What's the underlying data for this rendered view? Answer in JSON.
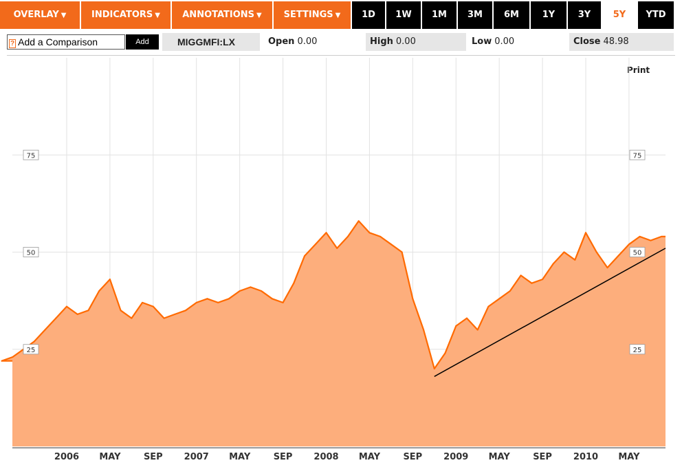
{
  "toolbar": {
    "menus": [
      {
        "label": "OVERLAY"
      },
      {
        "label": "INDICATORS"
      },
      {
        "label": "ANNOTATIONS"
      },
      {
        "label": "SETTINGS"
      }
    ],
    "ranges": [
      {
        "label": "1D"
      },
      {
        "label": "1W"
      },
      {
        "label": "1M"
      },
      {
        "label": "3M"
      },
      {
        "label": "6M"
      },
      {
        "label": "1Y"
      },
      {
        "label": "3Y"
      },
      {
        "label": "5Y",
        "active": true
      },
      {
        "label": "YTD"
      }
    ]
  },
  "comparison": {
    "help_label": "?",
    "label": "Add a Comparison",
    "add_label": "Add"
  },
  "quote": {
    "symbol": "MIGGMFI:LX",
    "open_label": "Open",
    "open_value": "0.00",
    "high_label": "High",
    "high_value": "0.00",
    "low_label": "Low",
    "low_value": "0.00",
    "close_label": "Close",
    "close_value": "48.98"
  },
  "print_label": "Print",
  "colors": {
    "accent": "#f26a1b",
    "line": "#ff6a00",
    "fill": "#fdae7c",
    "trendline": "#000000"
  },
  "chart_data": {
    "type": "area",
    "ylim": [
      0,
      100
    ],
    "y_ticks": [
      25,
      50,
      75
    ],
    "x_tick_labels": [
      "2006",
      "MAY",
      "SEP",
      "2007",
      "MAY",
      "SEP",
      "2008",
      "MAY",
      "SEP",
      "2009",
      "MAY",
      "SEP",
      "2010",
      "MAY"
    ],
    "x_tick_dates": [
      "2006-01",
      "2006-05",
      "2006-09",
      "2007-01",
      "2007-05",
      "2007-09",
      "2008-01",
      "2008-05",
      "2008-09",
      "2009-01",
      "2009-05",
      "2009-09",
      "2010-01",
      "2010-05"
    ],
    "grid": true,
    "series": [
      {
        "x": [
          "2005-07",
          "2005-08",
          "2005-09",
          "2005-10",
          "2005-11",
          "2005-12",
          "2006-01",
          "2006-02",
          "2006-03",
          "2006-04",
          "2006-05",
          "2006-06",
          "2006-07",
          "2006-08",
          "2006-09",
          "2006-10",
          "2006-11",
          "2006-12",
          "2007-01",
          "2007-02",
          "2007-03",
          "2007-04",
          "2007-05",
          "2007-06",
          "2007-07",
          "2007-08",
          "2007-09",
          "2007-10",
          "2007-11",
          "2007-12",
          "2008-01",
          "2008-02",
          "2008-03",
          "2008-04",
          "2008-05",
          "2008-06",
          "2008-07",
          "2008-08",
          "2008-09",
          "2008-10",
          "2008-11",
          "2008-12",
          "2009-01",
          "2009-02",
          "2009-03",
          "2009-04",
          "2009-05",
          "2009-06",
          "2009-07",
          "2009-08",
          "2009-09",
          "2009-10",
          "2009-11",
          "2009-12",
          "2010-01",
          "2010-02",
          "2010-03",
          "2010-04",
          "2010-05",
          "2010-06",
          "2010-07",
          "2010-08"
        ],
        "values": [
          22,
          23,
          25,
          27,
          30,
          33,
          36,
          34,
          35,
          40,
          43,
          35,
          33,
          37,
          36,
          33,
          34,
          35,
          37,
          38,
          37,
          38,
          40,
          41,
          40,
          38,
          37,
          42,
          49,
          52,
          55,
          51,
          54,
          58,
          55,
          54,
          52,
          50,
          38,
          30,
          20,
          24,
          31,
          33,
          30,
          36,
          38,
          40,
          44,
          42,
          43,
          47,
          50,
          48,
          55,
          50,
          46,
          49,
          52,
          54,
          53,
          54
        ]
      }
    ],
    "trendline": {
      "from": {
        "x": "2008-11",
        "y": 18
      },
      "to": {
        "x": "2010-08",
        "y": 51
      }
    }
  }
}
